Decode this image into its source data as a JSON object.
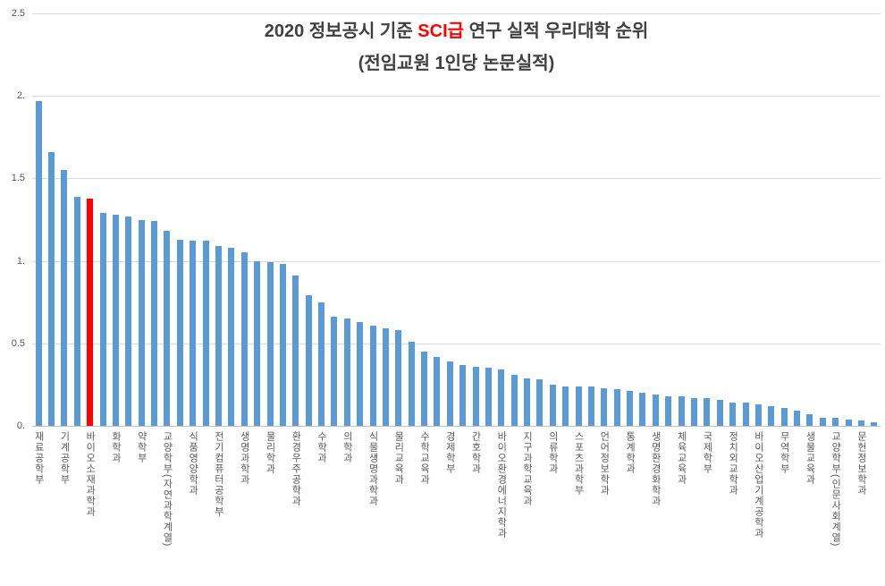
{
  "title": {
    "prefix": "2020 정보공시 기준 ",
    "highlight": "SCI급",
    "suffix": " 연구 실적 우리대학 순위",
    "subtitle": "(전임교원 1인당 논문실적)"
  },
  "colors": {
    "bar": "#5b9bd5",
    "highlight_bar": "#ff0000",
    "title_text": "#404040",
    "highlight_text": "#ff0000",
    "axis_text": "#595959",
    "gridline": "#d9d9d9",
    "axis_line": "#c3c3c3"
  },
  "chart_data": {
    "type": "bar",
    "title": "2020 정보공시 기준 SCI급 연구 실적 우리대학 순위",
    "subtitle": "(전임교원 1인당 논문실적)",
    "xlabel": "",
    "ylabel": "",
    "ylim": [
      0,
      2.5
    ],
    "grid": "horizontal",
    "legend": "none",
    "yticks": [
      {
        "value": 0,
        "label": "0."
      },
      {
        "value": 0.5,
        "label": "0.5"
      },
      {
        "value": 1,
        "label": "1."
      },
      {
        "value": 1.5,
        "label": "1.5"
      },
      {
        "value": 2,
        "label": "2."
      },
      {
        "value": 2.5,
        "label": "2.5"
      }
    ],
    "values": [
      1.97,
      1.66,
      1.55,
      1.39,
      1.38,
      1.29,
      1.28,
      1.27,
      1.25,
      1.24,
      1.18,
      1.13,
      1.12,
      1.12,
      1.09,
      1.08,
      1.05,
      1.0,
      0.99,
      0.98,
      0.91,
      0.79,
      0.75,
      0.66,
      0.65,
      0.63,
      0.61,
      0.59,
      0.58,
      0.51,
      0.45,
      0.42,
      0.39,
      0.37,
      0.36,
      0.35,
      0.34,
      0.31,
      0.29,
      0.28,
      0.25,
      0.24,
      0.24,
      0.24,
      0.23,
      0.22,
      0.21,
      0.2,
      0.19,
      0.18,
      0.18,
      0.17,
      0.17,
      0.16,
      0.14,
      0.14,
      0.13,
      0.12,
      0.11,
      0.09,
      0.07,
      0.05,
      0.05,
      0.04,
      0.03,
      0.02
    ],
    "highlight_index": 4,
    "label_interval": 2,
    "labels": [
      "재료공학부",
      "기계공학부",
      "바이오소재과학과",
      "화학과",
      "약학부",
      "교양학부(자연과학계열)",
      "식품영양학과",
      "전기컴퓨터공학부",
      "생명과학과",
      "물리학과",
      "환경우주공학과",
      "수학과",
      "의학과",
      "식물생명과학과",
      "물리교육과",
      "수학교육과",
      "경제학부",
      "간호학과",
      "바이오환경에너지학과",
      "지구과학교육과",
      "의류학과",
      "스포츠과학부",
      "언어정보학과",
      "통계학과",
      "생명환경화학과",
      "체육교육과",
      "국제학부",
      "정치외교학과",
      "바이오산업기계공학과",
      "무역학부",
      "생물교육과",
      "교양학부(인문사회계열)",
      "문헌정보학과"
    ]
  }
}
